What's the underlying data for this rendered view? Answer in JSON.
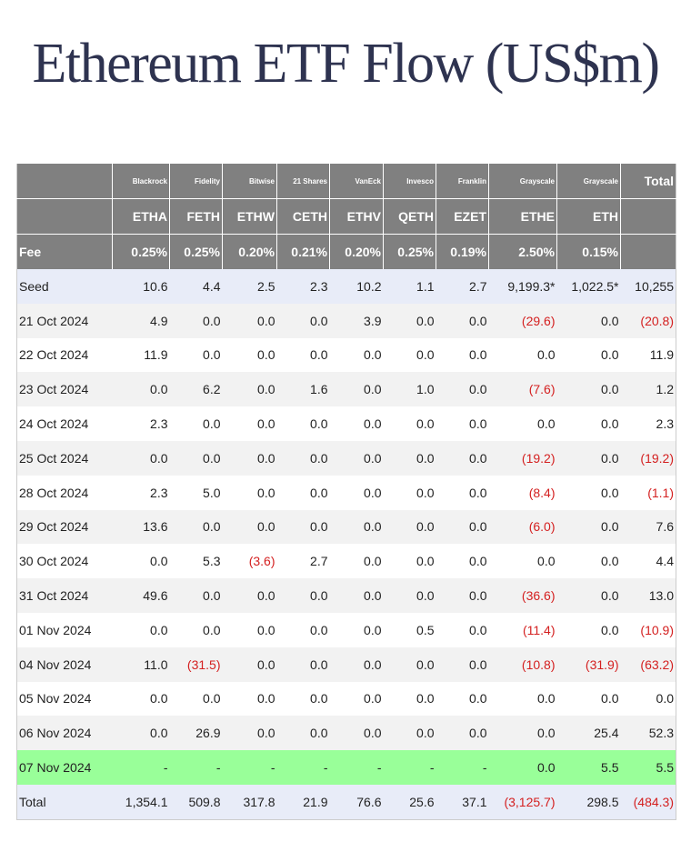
{
  "title": "Ethereum ETF Flow (US$m)",
  "accent_colors": {
    "header_bg": "#808080",
    "seed_total_bg": "#e8ecf8",
    "highlight_bg": "#99ff99",
    "negative": "#d42020"
  },
  "columns": [
    {
      "issuer": "Blackrock",
      "ticker": "ETHA",
      "fee": "0.25%"
    },
    {
      "issuer": "Fidelity",
      "ticker": "FETH",
      "fee": "0.25%"
    },
    {
      "issuer": "Bitwise",
      "ticker": "ETHW",
      "fee": "0.20%"
    },
    {
      "issuer": "21 Shares",
      "ticker": "CETH",
      "fee": "0.21%"
    },
    {
      "issuer": "VanEck",
      "ticker": "ETHV",
      "fee": "0.20%"
    },
    {
      "issuer": "Invesco",
      "ticker": "QETH",
      "fee": "0.25%"
    },
    {
      "issuer": "Franklin",
      "ticker": "EZET",
      "fee": "0.19%"
    },
    {
      "issuer": "Grayscale",
      "ticker": "ETHE",
      "fee": "2.50%"
    },
    {
      "issuer": "Grayscale",
      "ticker": "ETH",
      "fee": "0.15%"
    }
  ],
  "total_header": "Total",
  "fee_label": "Fee",
  "rows": [
    {
      "label": "Seed",
      "style": "seed",
      "cells": [
        "10.6",
        "4.4",
        "2.5",
        "2.3",
        "10.2",
        "1.1",
        "2.7",
        "9,199.3*",
        "1,022.5*",
        "10,255"
      ]
    },
    {
      "label": "21 Oct 2024",
      "cells": [
        "4.9",
        "0.0",
        "0.0",
        "0.0",
        "3.9",
        "0.0",
        "0.0",
        "(29.6)",
        "0.0",
        "(20.8)"
      ]
    },
    {
      "label": "22 Oct 2024",
      "cells": [
        "11.9",
        "0.0",
        "0.0",
        "0.0",
        "0.0",
        "0.0",
        "0.0",
        "0.0",
        "0.0",
        "11.9"
      ]
    },
    {
      "label": "23 Oct 2024",
      "cells": [
        "0.0",
        "6.2",
        "0.0",
        "1.6",
        "0.0",
        "1.0",
        "0.0",
        "(7.6)",
        "0.0",
        "1.2"
      ]
    },
    {
      "label": "24 Oct 2024",
      "cells": [
        "2.3",
        "0.0",
        "0.0",
        "0.0",
        "0.0",
        "0.0",
        "0.0",
        "0.0",
        "0.0",
        "2.3"
      ]
    },
    {
      "label": "25 Oct 2024",
      "cells": [
        "0.0",
        "0.0",
        "0.0",
        "0.0",
        "0.0",
        "0.0",
        "0.0",
        "(19.2)",
        "0.0",
        "(19.2)"
      ]
    },
    {
      "label": "28 Oct 2024",
      "cells": [
        "2.3",
        "5.0",
        "0.0",
        "0.0",
        "0.0",
        "0.0",
        "0.0",
        "(8.4)",
        "0.0",
        "(1.1)"
      ]
    },
    {
      "label": "29 Oct 2024",
      "cells": [
        "13.6",
        "0.0",
        "0.0",
        "0.0",
        "0.0",
        "0.0",
        "0.0",
        "(6.0)",
        "0.0",
        "7.6"
      ]
    },
    {
      "label": "30 Oct 2024",
      "cells": [
        "0.0",
        "5.3",
        "(3.6)",
        "2.7",
        "0.0",
        "0.0",
        "0.0",
        "0.0",
        "0.0",
        "4.4"
      ]
    },
    {
      "label": "31 Oct 2024",
      "cells": [
        "49.6",
        "0.0",
        "0.0",
        "0.0",
        "0.0",
        "0.0",
        "0.0",
        "(36.6)",
        "0.0",
        "13.0"
      ]
    },
    {
      "label": "01 Nov 2024",
      "cells": [
        "0.0",
        "0.0",
        "0.0",
        "0.0",
        "0.0",
        "0.5",
        "0.0",
        "(11.4)",
        "0.0",
        "(10.9)"
      ]
    },
    {
      "label": "04 Nov 2024",
      "cells": [
        "11.0",
        "(31.5)",
        "0.0",
        "0.0",
        "0.0",
        "0.0",
        "0.0",
        "(10.8)",
        "(31.9)",
        "(63.2)"
      ]
    },
    {
      "label": "05 Nov 2024",
      "cells": [
        "0.0",
        "0.0",
        "0.0",
        "0.0",
        "0.0",
        "0.0",
        "0.0",
        "0.0",
        "0.0",
        "0.0"
      ]
    },
    {
      "label": "06 Nov 2024",
      "cells": [
        "0.0",
        "26.9",
        "0.0",
        "0.0",
        "0.0",
        "0.0",
        "0.0",
        "0.0",
        "25.4",
        "52.3"
      ]
    },
    {
      "label": "07 Nov 2024",
      "style": "highlight",
      "cells": [
        "-",
        "-",
        "-",
        "-",
        "-",
        "-",
        "-",
        "0.0",
        "5.5",
        "5.5"
      ]
    },
    {
      "label": "Total",
      "style": "total",
      "cells": [
        "1,354.1",
        "509.8",
        "317.8",
        "21.9",
        "76.6",
        "25.6",
        "37.1",
        "(3,125.7)",
        "298.5",
        "(484.3)"
      ]
    }
  ]
}
